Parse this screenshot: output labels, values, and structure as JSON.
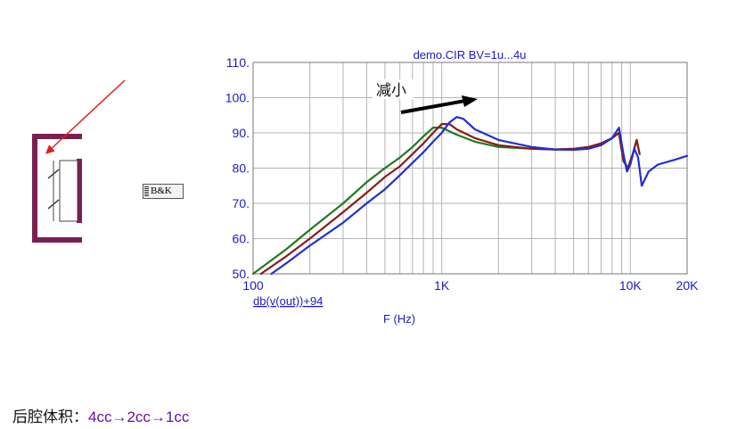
{
  "annotation_text": "减小",
  "device_label": "B&K",
  "footer": {
    "lead": "后腔体积：",
    "flow": "4cc→2cc→1cc"
  },
  "colors": {
    "axis_text": "#1a1acd",
    "grid": "#b3b3b3",
    "series_green": "#1f7a1f",
    "series_darkred": "#8b1a1a",
    "series_blue": "#1f2fd6",
    "arrow_red": "#e02020",
    "enclosure": "#7a2050"
  },
  "chart_data": {
    "type": "line",
    "title": "demo.CIR BV=1u...4u",
    "xlabel": "F (Hz)",
    "ylabel": "db(v(out))+94",
    "x_scale": "log",
    "xlim": [
      100,
      20000
    ],
    "ylim": [
      50,
      110
    ],
    "x_ticks": [
      {
        "value": 100,
        "label": "100"
      },
      {
        "value": 1000,
        "label": "1K"
      },
      {
        "value": 10000,
        "label": "10K"
      },
      {
        "value": 20000,
        "label": "20K"
      }
    ],
    "y_ticks": [
      50,
      60,
      70,
      80,
      90,
      100,
      110
    ],
    "y_tick_labels": [
      "50.",
      "60.",
      "70.",
      "80.",
      "90.",
      "100.",
      "110."
    ],
    "grid": true,
    "legend": "none",
    "series": [
      {
        "color": "#1f7a1f",
        "x": [
          100,
          150,
          200,
          300,
          400,
          500,
          600,
          700,
          800,
          900,
          1000,
          1200,
          1500,
          2000,
          3000,
          4000,
          5000,
          6000,
          7000,
          8000,
          8700,
          9200,
          9700,
          10300,
          10800,
          11200
        ],
        "y": [
          50,
          57,
          62.5,
          70,
          76,
          80,
          83,
          86,
          89,
          91.5,
          91.5,
          89.5,
          87.5,
          86,
          85.5,
          85.3,
          85.5,
          86,
          87,
          88.5,
          90,
          82,
          80,
          84,
          88,
          84
        ]
      },
      {
        "color": "#8b1a1a",
        "x": [
          110,
          150,
          200,
          300,
          400,
          500,
          600,
          700,
          800,
          900,
          1000,
          1100,
          1200,
          1500,
          2000,
          3000,
          4000,
          5000,
          6000,
          7000,
          8000,
          8700,
          9200,
          9700,
          10300,
          10800,
          11200
        ],
        "y": [
          50,
          55,
          60,
          67.5,
          73,
          77.5,
          80.5,
          84,
          87,
          90,
          92.5,
          92.5,
          91,
          88.5,
          86.5,
          85.5,
          85.3,
          85.5,
          86,
          87,
          88.5,
          90,
          82,
          80,
          84,
          88,
          84
        ]
      },
      {
        "color": "#1f2fd6",
        "x": [
          125,
          150,
          200,
          300,
          400,
          500,
          600,
          700,
          800,
          900,
          1000,
          1100,
          1200,
          1300,
          1500,
          2000,
          3000,
          4000,
          5000,
          6000,
          7000,
          8000,
          8700,
          9200,
          9600,
          10000,
          10500,
          11000,
          11500,
          12500,
          14000,
          17000,
          20000
        ],
        "y": [
          50,
          53,
          58,
          64.5,
          70,
          74,
          78,
          81.5,
          84.5,
          87.5,
          90,
          93,
          94.5,
          94,
          91,
          88,
          86,
          85.3,
          85.2,
          85.5,
          86.5,
          88.5,
          91.5,
          84,
          79,
          81,
          85.5,
          83,
          75,
          79,
          81,
          82.3,
          83.5
        ]
      }
    ]
  }
}
